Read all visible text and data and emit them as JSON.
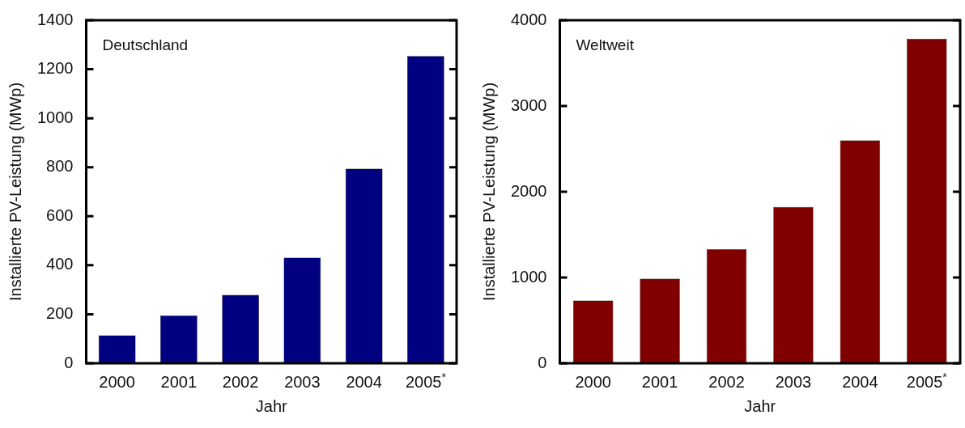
{
  "chart_data": [
    {
      "type": "bar",
      "title": "Deutschland",
      "xlabel": "Jahr",
      "ylabel": "Installierte PV-Leistung (MWp)",
      "categories": [
        "2000",
        "2001",
        "2002",
        "2003",
        "2004",
        "2005$^{*}$"
      ],
      "values": [
        114,
        195,
        279,
        431,
        794,
        1254
      ],
      "color": "#000080",
      "ylim": [
        0,
        1400
      ],
      "yticks": [
        0,
        200,
        400,
        600,
        800,
        1000,
        1200,
        1400
      ]
    },
    {
      "type": "bar",
      "title": "Weltweit",
      "xlabel": "Jahr",
      "ylabel": "Installierte PV-Leistung (MWp)",
      "categories": [
        "2000",
        "2001",
        "2002",
        "2003",
        "2004",
        "2005$^{*}$"
      ],
      "values": [
        732,
        986,
        1331,
        1824,
        2599,
        3782
      ],
      "color": "#800000",
      "ylim": [
        0,
        4000
      ],
      "yticks": [
        0,
        1000,
        2000,
        3000,
        4000
      ]
    }
  ]
}
